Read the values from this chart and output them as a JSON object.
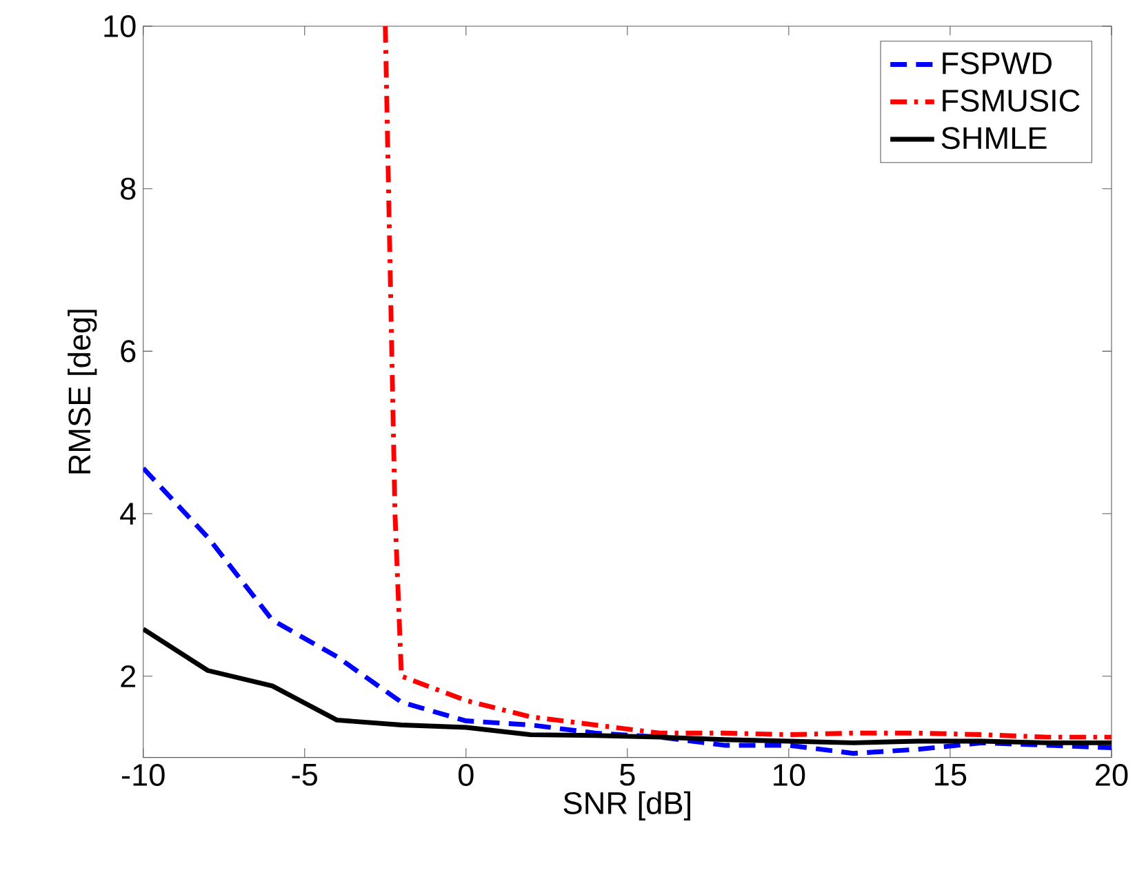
{
  "chart_data": {
    "type": "line",
    "xlabel": "SNR [dB]",
    "ylabel": "RMSE [deg]",
    "xlim": [
      -10,
      20
    ],
    "xticks": [
      -10,
      -5,
      0,
      5,
      10,
      15,
      20
    ],
    "ylim": [
      1,
      10
    ],
    "yticks": [
      2,
      4,
      6,
      8,
      10
    ],
    "legend": "top right",
    "series": [
      {
        "name": "FSPWD",
        "color": "#0000ff",
        "line_style": "dashed",
        "x": [
          -10,
          -8,
          -6,
          -4,
          -2,
          0,
          2,
          4,
          6,
          8,
          10,
          12,
          14,
          16,
          18,
          20
        ],
        "values": [
          4.56,
          3.71,
          2.69,
          2.24,
          1.68,
          1.45,
          1.4,
          1.3,
          1.25,
          1.15,
          1.15,
          1.05,
          1.1,
          1.18,
          1.15,
          1.12
        ]
      },
      {
        "name": "FSMUSIC",
        "color": "#ff0000",
        "line_style": "dashdot",
        "x": [
          -2.5,
          -2.2,
          -2,
          0,
          2,
          4,
          6,
          8,
          10,
          12,
          14,
          16,
          18,
          20
        ],
        "values": [
          10,
          4.0,
          2.0,
          1.7,
          1.5,
          1.4,
          1.3,
          1.3,
          1.28,
          1.3,
          1.3,
          1.28,
          1.25,
          1.25
        ]
      },
      {
        "name": "SHMLE",
        "color": "#000000",
        "line_style": "solid",
        "x": [
          -10,
          -8,
          -6,
          -4,
          -2,
          0,
          2,
          4,
          6,
          8,
          10,
          12,
          14,
          16,
          18,
          20
        ],
        "values": [
          2.58,
          2.07,
          1.88,
          1.46,
          1.4,
          1.37,
          1.28,
          1.27,
          1.25,
          1.22,
          1.2,
          1.18,
          1.2,
          1.2,
          1.18,
          1.18
        ]
      }
    ]
  }
}
